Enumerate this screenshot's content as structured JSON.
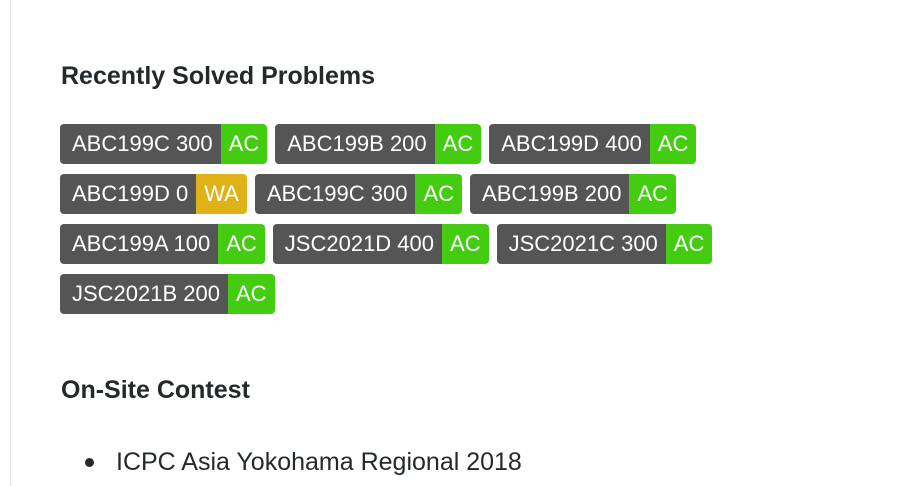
{
  "recent": {
    "title": "Recently Solved Problems",
    "rows": [
      [
        {
          "name": "ABC199C 300",
          "status": "AC"
        },
        {
          "name": "ABC199B 200",
          "status": "AC"
        },
        {
          "name": "ABC199D 400",
          "status": "AC"
        }
      ],
      [
        {
          "name": "ABC199D 0",
          "status": "WA"
        },
        {
          "name": "ABC199C 300",
          "status": "AC"
        },
        {
          "name": "ABC199B 200",
          "status": "AC"
        }
      ],
      [
        {
          "name": "ABC199A 100",
          "status": "AC"
        },
        {
          "name": "JSC2021D 400",
          "status": "AC"
        },
        {
          "name": "JSC2021C 300",
          "status": "AC"
        }
      ],
      [
        {
          "name": "JSC2021B 200",
          "status": "AC"
        }
      ]
    ]
  },
  "colors": {
    "badge_name_bg": "#555555",
    "ac": "#44cc11",
    "wa": "#dfb317"
  },
  "onsite": {
    "title": "On-Site Contest",
    "items": [
      "ICPC Asia Yokohama Regional 2018"
    ]
  }
}
